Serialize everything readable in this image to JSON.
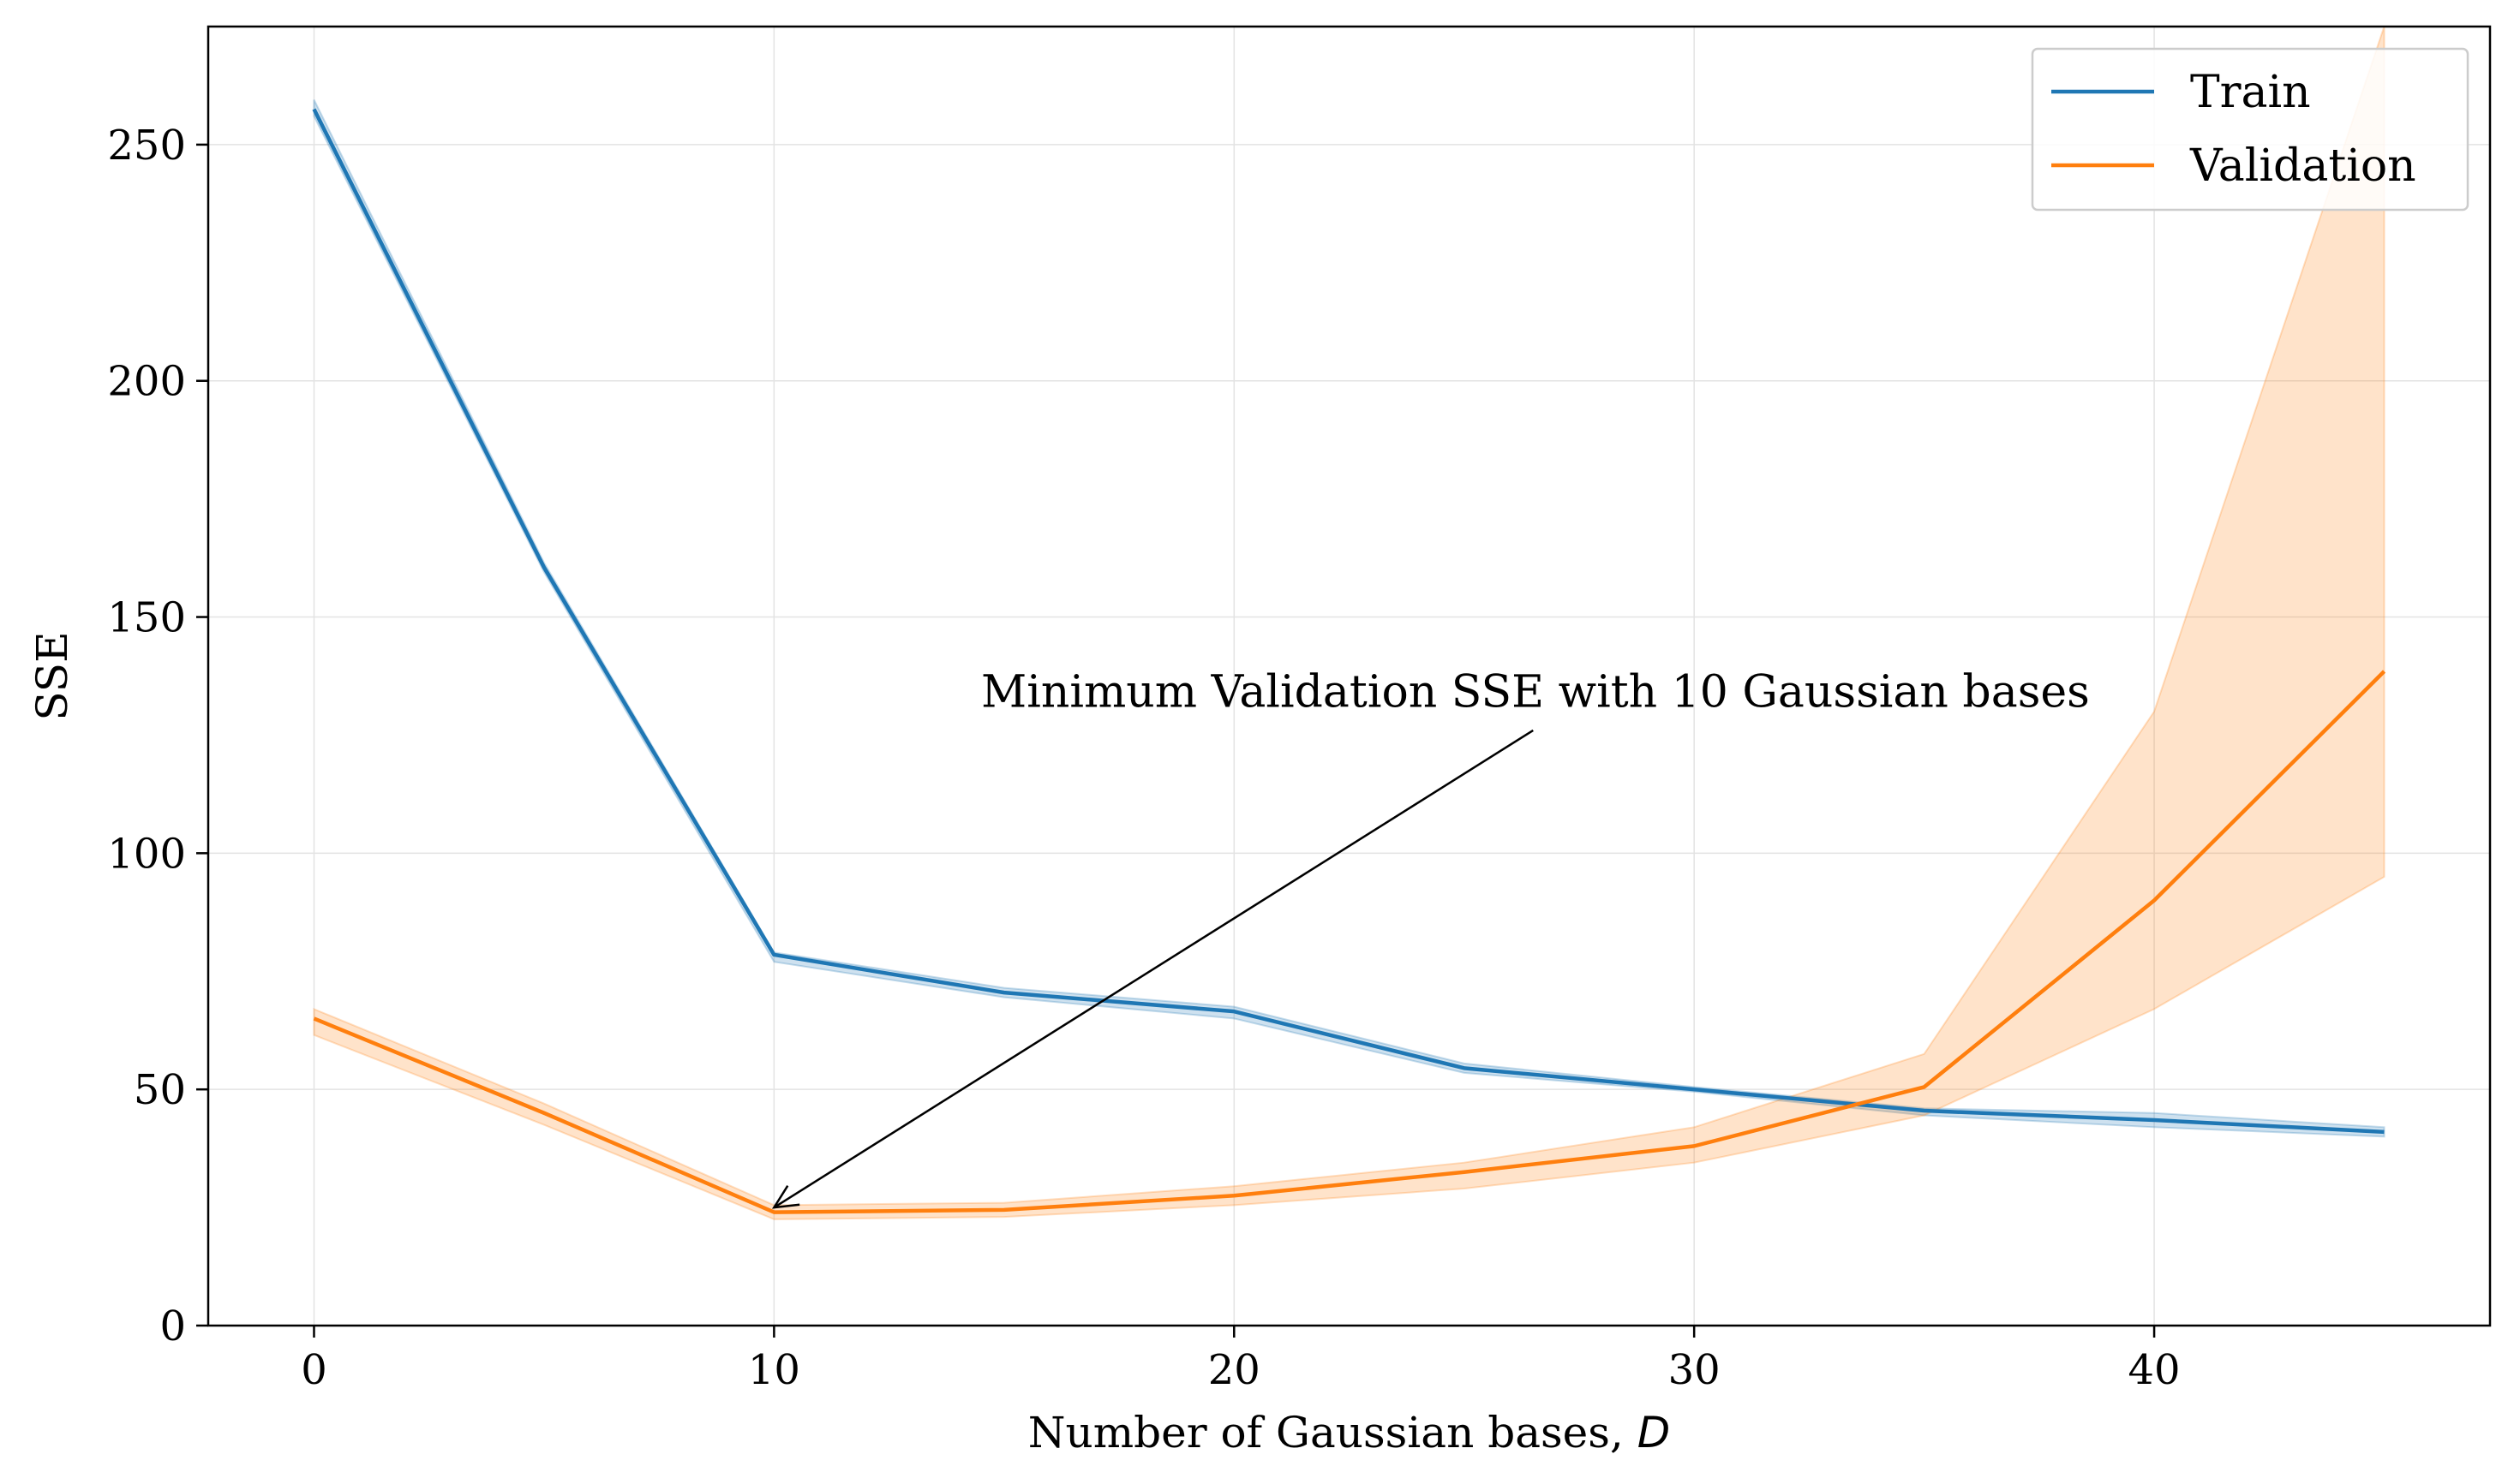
{
  "chart_data": {
    "type": "line",
    "xlabel": "Number of Gaussian bases, ",
    "xlabel_var": "D",
    "ylabel": "SSE",
    "xlim": [
      -2.3,
      47.3
    ],
    "ylim": [
      0,
      275
    ],
    "xticks": [
      0,
      10,
      20,
      30,
      40
    ],
    "yticks": [
      0,
      50,
      100,
      150,
      200,
      250
    ],
    "grid": true,
    "legend_position": "top-right",
    "series": [
      {
        "name": "Train",
        "color": "#1f77b4",
        "x": [
          0,
          5,
          10,
          15,
          20,
          25,
          30,
          35,
          40,
          45
        ],
        "y": [
          257.5,
          160.5,
          78.5,
          70.5,
          66.5,
          54.5,
          50.0,
          45.5,
          43.5,
          41.0
        ],
        "y_lower": [
          256.0,
          159.5,
          77.0,
          69.5,
          65.0,
          53.5,
          49.5,
          44.5,
          42.0,
          40.0
        ],
        "y_upper": [
          259.5,
          161.5,
          79.0,
          71.5,
          67.5,
          55.5,
          50.5,
          46.0,
          45.0,
          42.0
        ]
      },
      {
        "name": "Validation",
        "color": "#ff7f0e",
        "x": [
          0,
          5,
          10,
          15,
          20,
          25,
          30,
          35,
          40,
          45
        ],
        "y": [
          65.0,
          45.0,
          24.0,
          24.5,
          27.5,
          32.5,
          38.0,
          50.5,
          90.0,
          138.5
        ],
        "y_lower": [
          61.5,
          42.5,
          22.5,
          23.0,
          25.5,
          29.0,
          34.5,
          44.5,
          67.0,
          95.0
        ],
        "y_upper": [
          67.0,
          47.0,
          25.5,
          26.0,
          29.5,
          34.5,
          42.0,
          57.5,
          130.0,
          275.0
        ]
      }
    ],
    "annotations": [
      {
        "text": "Minimum Validation SSE with 10 Gaussian bases",
        "text_x": 14.5,
        "text_y": 131,
        "arrow_from_x": 26.5,
        "arrow_from_y": 126,
        "arrow_to_x": 10,
        "arrow_to_y": 25
      }
    ]
  }
}
